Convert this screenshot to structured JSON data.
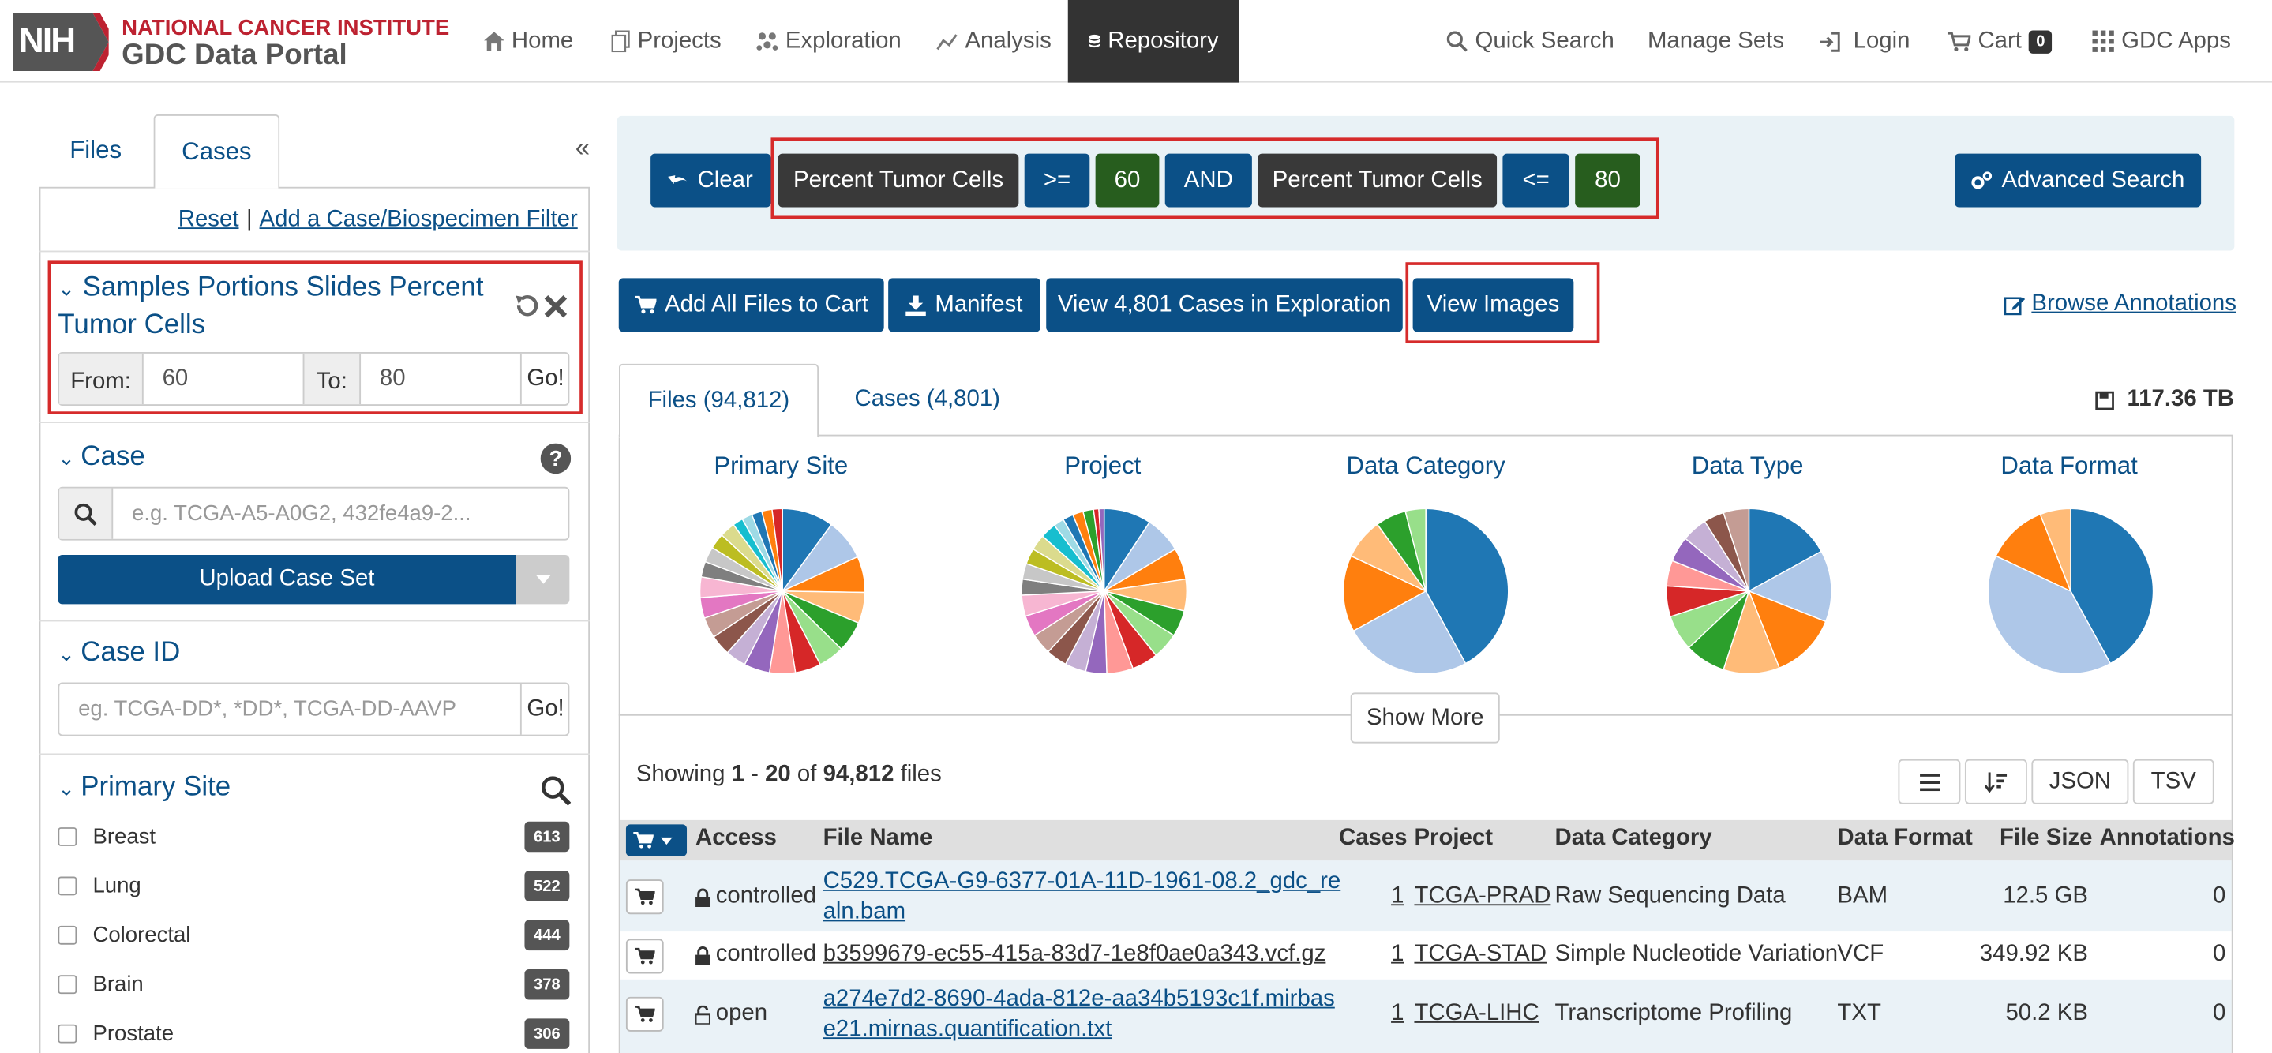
{
  "nav": {
    "logo_nih": "NIH",
    "logo_line1": "NATIONAL CANCER INSTITUTE",
    "logo_line2": "GDC Data Portal",
    "items": [
      {
        "label": "Home",
        "icon": "home-icon"
      },
      {
        "label": "Projects",
        "icon": "projects-icon"
      },
      {
        "label": "Exploration",
        "icon": "exploration-icon"
      },
      {
        "label": "Analysis",
        "icon": "analysis-icon"
      },
      {
        "label": "Repository",
        "icon": "database-icon",
        "active": true
      }
    ],
    "right": {
      "quick_search": "Quick Search",
      "manage_sets": "Manage Sets",
      "login": "Login",
      "cart": "Cart",
      "cart_count": "0",
      "gdc_apps": "GDC Apps"
    }
  },
  "sidebar": {
    "tabs": [
      "Files",
      "Cases"
    ],
    "active_tab": "Cases",
    "collapse": "«",
    "reset": "Reset",
    "separator": "|",
    "add_filter": "Add a Case/Biospecimen Filter",
    "tumor_facet": {
      "title": "Samples Portions Slides Percent Tumor Cells",
      "from_label": "From:",
      "from_value": "60",
      "to_label": "To:",
      "to_value": "80",
      "go": "Go!"
    },
    "case_facet": {
      "title": "Case",
      "placeholder": "e.g. TCGA-A5-A0G2, 432fe4a9-2...",
      "upload": "Upload Case Set"
    },
    "case_id_facet": {
      "title": "Case ID",
      "placeholder": "eg. TCGA-DD*, *DD*, TCGA-DD-AAVP",
      "go": "Go!"
    },
    "primary_site_facet": {
      "title": "Primary Site",
      "items": [
        {
          "label": "Breast",
          "count": "613"
        },
        {
          "label": "Lung",
          "count": "522"
        },
        {
          "label": "Colorectal",
          "count": "444"
        },
        {
          "label": "Brain",
          "count": "378"
        },
        {
          "label": "Prostate",
          "count": "306"
        }
      ]
    }
  },
  "query": {
    "clear": "Clear",
    "filters": [
      "Percent Tumor Cells",
      ">=",
      "60",
      "AND",
      "Percent Tumor Cells",
      "<=",
      "80"
    ],
    "advanced": "Advanced Search"
  },
  "actions": {
    "add_all": "Add All Files to Cart",
    "manifest": "Manifest",
    "view_cases": "View 4,801 Cases in Exploration",
    "view_images": "View Images",
    "browse_annotations": "Browse Annotations"
  },
  "result_tabs": {
    "files": "Files (94,812)",
    "cases": "Cases (4,801)",
    "total_size": "117.36 TB"
  },
  "pies": [
    {
      "title": "Primary Site",
      "values": [
        10,
        8,
        7,
        6,
        6,
        5,
        5,
        5,
        5,
        4,
        4,
        4,
        4,
        4,
        3,
        3,
        3,
        3,
        2,
        2,
        2,
        2,
        2
      ],
      "colors": [
        "#1f77b4",
        "#aec7e8",
        "#ff7f0e",
        "#ffbb78",
        "#2ca02c",
        "#98df8a",
        "#d62728",
        "#ff9896",
        "#9467bd",
        "#c5b0d5",
        "#8c564b",
        "#c49c94",
        "#e377c2",
        "#f7b6d2",
        "#7f7f7f",
        "#c7c7c7",
        "#bcbd22",
        "#dbdb8d",
        "#17becf",
        "#9edae5",
        "#1f77b4",
        "#ff7f0e",
        "#d62728"
      ]
    },
    {
      "title": "Project",
      "values": [
        9,
        7,
        6,
        6,
        5,
        5,
        5,
        5,
        4,
        4,
        4,
        4,
        4,
        4,
        3,
        3,
        3,
        3,
        3,
        2,
        2,
        2,
        2,
        1,
        1
      ],
      "colors": [
        "#1f77b4",
        "#aec7e8",
        "#ff7f0e",
        "#ffbb78",
        "#2ca02c",
        "#98df8a",
        "#d62728",
        "#ff9896",
        "#9467bd",
        "#c5b0d5",
        "#8c564b",
        "#c49c94",
        "#e377c2",
        "#f7b6d2",
        "#7f7f7f",
        "#c7c7c7",
        "#bcbd22",
        "#dbdb8d",
        "#17becf",
        "#9edae5",
        "#1f77b4",
        "#ff7f0e",
        "#2ca02c",
        "#d62728",
        "#9467bd"
      ]
    },
    {
      "title": "Data Category",
      "values": [
        42,
        25,
        15,
        8,
        6,
        4
      ],
      "colors": [
        "#1f77b4",
        "#aec7e8",
        "#ff7f0e",
        "#ffbb78",
        "#2ca02c",
        "#98df8a"
      ]
    },
    {
      "title": "Data Type",
      "values": [
        17,
        14,
        13,
        11,
        8,
        7,
        6,
        5,
        5,
        5,
        4,
        5
      ],
      "colors": [
        "#1f77b4",
        "#aec7e8",
        "#ff7f0e",
        "#ffbb78",
        "#2ca02c",
        "#98df8a",
        "#d62728",
        "#ff9896",
        "#9467bd",
        "#c5b0d5",
        "#8c564b",
        "#c49c94"
      ]
    },
    {
      "title": "Data Format",
      "values": [
        42,
        40,
        12,
        6
      ],
      "colors": [
        "#1f77b4",
        "#aec7e8",
        "#ff7f0e",
        "#ffbb78"
      ]
    }
  ],
  "show_more": "Show More",
  "showing": {
    "prefix": "Showing",
    "from": "1",
    "dash": "-",
    "to": "20",
    "of": "of",
    "total": "94,812",
    "suffix": "files"
  },
  "table_tools": {
    "json": "JSON",
    "tsv": "TSV"
  },
  "table": {
    "headers": [
      "Access",
      "File Name",
      "Cases",
      "Project",
      "Data Category",
      "Data Format",
      "File Size",
      "Annotations"
    ],
    "rows": [
      {
        "access": "controlled",
        "file_line1": "C529.TCGA-G9-6377-01A-11D-1961-08.2_gdc_re",
        "file_line2": "aln.bam",
        "cases": "1",
        "project": "TCGA-PRAD",
        "category": "Raw Sequencing Data",
        "format": "BAM",
        "size": "12.5 GB",
        "annotations": "0"
      },
      {
        "access": "controlled",
        "file_line1": "b3599679-ec55-415a-83d7-1e8f0ae0a343.vcf.gz",
        "file_line2": "",
        "cases": "1",
        "project": "TCGA-STAD",
        "category": "Simple Nucleotide Variation",
        "format": "VCF",
        "size": "349.92 KB",
        "annotations": "0"
      },
      {
        "access": "open",
        "file_line1": "a274e7d2-8690-4ada-812e-aa34b5193c1f.mirbas",
        "file_line2": "e21.mirnas.quantification.txt",
        "cases": "1",
        "project": "TCGA-LIHC",
        "category": "Transcriptome Profiling",
        "format": "TXT",
        "size": "50.2 KB",
        "annotations": "0"
      }
    ]
  }
}
